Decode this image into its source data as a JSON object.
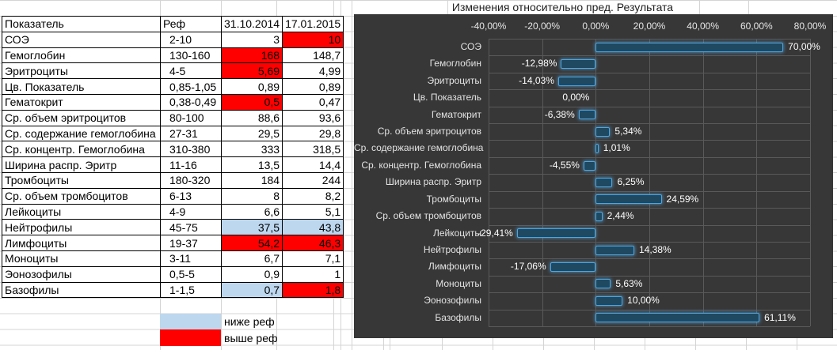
{
  "sheet": {
    "table": {
      "headers": [
        "Показатель",
        "Реф",
        "31.10.2014",
        "17.01.2015"
      ],
      "rows": [
        {
          "name": "СОЭ",
          "ref": "2-10",
          "v2014": "3",
          "s2014": "normal",
          "v2015": "10",
          "s2015": "high",
          "note": false
        },
        {
          "name": "Гемоглобин",
          "ref": "130-160",
          "v2014": "168",
          "s2014": "high",
          "v2015": "148,7",
          "s2015": "normal",
          "note": false
        },
        {
          "name": "Эритроциты",
          "ref": "4-5",
          "v2014": "5,69",
          "s2014": "high",
          "v2015": "4,99",
          "s2015": "normal",
          "note": false
        },
        {
          "name": "Цв. Показатель",
          "ref": "0,85-1,05",
          "v2014": "0,89",
          "s2014": "normal",
          "v2015": "0,89",
          "s2015": "normal",
          "note": false
        },
        {
          "name": "Гематокрит",
          "ref": "0,38-0,49",
          "v2014": "0,5",
          "s2014": "high",
          "v2015": "0,47",
          "s2015": "normal",
          "note": false
        },
        {
          "name": "Ср. объем эритроцитов",
          "ref": "80-100",
          "v2014": "88,6",
          "s2014": "normal",
          "v2015": "93,6",
          "s2015": "normal",
          "note": false
        },
        {
          "name": "Ср. содержание гемоглобина",
          "ref": "27-31",
          "v2014": "29,5",
          "s2014": "normal",
          "v2015": "29,8",
          "s2015": "normal",
          "note": false
        },
        {
          "name": "Ср. концентр. Гемоглобина",
          "ref": "310-380",
          "v2014": "333",
          "s2014": "normal",
          "v2015": "318,5",
          "s2015": "normal",
          "note": false
        },
        {
          "name": "Ширина распр. Эритр",
          "ref": "11-16",
          "v2014": "13,5",
          "s2014": "normal",
          "v2015": "14,4",
          "s2015": "normal",
          "note": true
        },
        {
          "name": "Тромбоциты",
          "ref": "180-320",
          "v2014": "184",
          "s2014": "normal",
          "v2015": "244",
          "s2015": "normal",
          "note": false
        },
        {
          "name": "Ср. объем тромбоцитов",
          "ref": "6-13",
          "v2014": "8",
          "s2014": "normal",
          "v2015": "8,2",
          "s2015": "normal",
          "note": true
        },
        {
          "name": "Лейкоциты",
          "ref": "4-9",
          "v2014": "6,6",
          "s2014": "normal",
          "v2015": "5,1",
          "s2015": "normal",
          "note": false
        },
        {
          "name": "Нейтрофилы",
          "ref": "45-75",
          "v2014": "37,5",
          "s2014": "low",
          "v2015": "43,8",
          "s2015": "low",
          "note": false
        },
        {
          "name": "Лимфоциты",
          "ref": "19-37",
          "v2014": "54,2",
          "s2014": "high",
          "v2015": "46,3",
          "s2015": "high",
          "note": false
        },
        {
          "name": "Моноциты",
          "ref": "3-11",
          "v2014": "6,7",
          "s2014": "normal",
          "v2015": "7,1",
          "s2015": "normal",
          "note": false
        },
        {
          "name": "Эонозофилы",
          "ref": "0,5-5",
          "v2014": "0,9",
          "s2014": "normal",
          "v2015": "1",
          "s2015": "normal",
          "note": false
        },
        {
          "name": "Базофилы",
          "ref": "1-1,5",
          "v2014": "0,7",
          "s2014": "low",
          "v2015": "1,8",
          "s2015": "high",
          "note": false
        }
      ]
    },
    "legend": [
      {
        "label": "ниже реф",
        "color": "#BDD7EE",
        "state": "low"
      },
      {
        "label": "выше реф",
        "color": "#FF0000",
        "state": "high"
      }
    ]
  },
  "chart_data": {
    "type": "bar",
    "orientation": "horizontal",
    "title": "Изменения относительно пред. Результата",
    "categories": [
      "СОЭ",
      "Гемоглобин",
      "Эритроциты",
      "Цв. Показатель",
      "Гематокрит",
      "Ср. объем эритроцитов",
      "Ср. содержание гемоглобина",
      "Ср. концентр. Гемоглобина",
      "Ширина распр. Эритр",
      "Тромбоциты",
      "Ср. объем тромбоцитов",
      "Лейкоциты",
      "Нейтрофилы",
      "Лимфоциты",
      "Моноциты",
      "Эонозофилы",
      "Базофилы"
    ],
    "values": [
      70.0,
      -12.98,
      -14.03,
      0.0,
      -6.38,
      5.34,
      1.01,
      -4.55,
      6.25,
      24.59,
      2.44,
      -29.41,
      14.38,
      -17.06,
      5.63,
      10.0,
      61.11
    ],
    "value_labels": [
      "70,00%",
      "-12,98%",
      "-14,03%",
      "0,00%",
      "-6,38%",
      "5,34%",
      "1,01%",
      "-4,55%",
      "6,25%",
      "24,59%",
      "2,44%",
      "-29,41%",
      "14,38%",
      "-17,06%",
      "5,63%",
      "10,00%",
      "61,11%"
    ],
    "xlabel": "",
    "ylabel": "",
    "xlim": [
      -40,
      80
    ],
    "axis": {
      "ticks": [
        -40,
        -20,
        0,
        20,
        40,
        60,
        80
      ],
      "tick_labels": [
        "-40,00%",
        "-20,00%",
        "0,00%",
        "20,00%",
        "40,00%",
        "60,00%",
        "80,00%"
      ]
    },
    "grid": true,
    "legend_position": "none"
  },
  "colors": {
    "chart_bg": "#373737",
    "chart_grid": "#5A5A5A",
    "bar_fill": "#1F4861",
    "bar_border": "#4EA6DF",
    "below_ref": "#BDD7EE",
    "above_ref": "#FF0000",
    "sheet_grid": "#D4D4D4",
    "note_green": "#0F9D3C"
  }
}
